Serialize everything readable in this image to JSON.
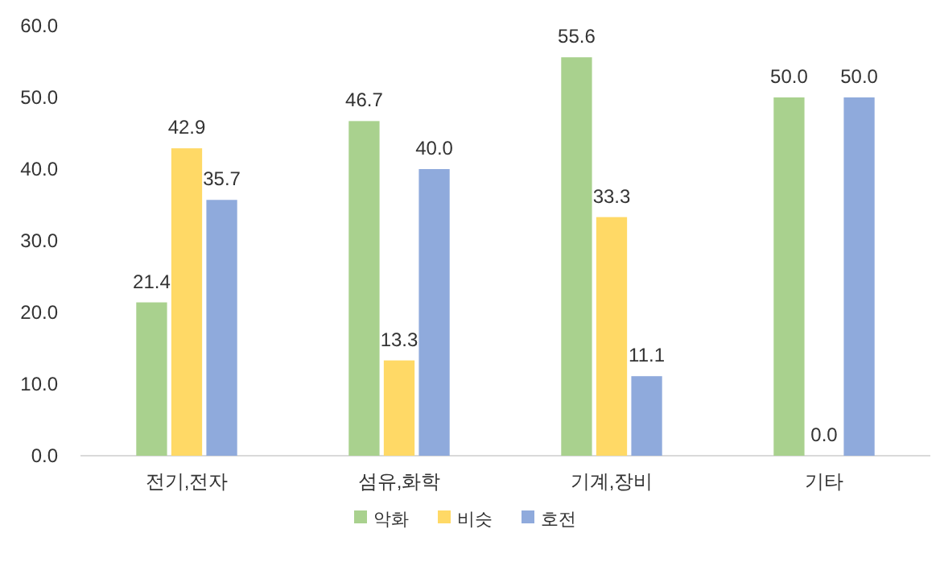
{
  "chart_data": {
    "type": "bar",
    "categories": [
      "전기,전자",
      "섬유,화학",
      "기계,장비",
      "기타"
    ],
    "series": [
      {
        "name": "악화",
        "color": "#a9d18e",
        "values": [
          21.4,
          46.7,
          55.6,
          50.0
        ],
        "value_labels": [
          "21.4",
          "46.7",
          "55.6",
          "50.0"
        ]
      },
      {
        "name": "비슷",
        "color": "#ffd966",
        "values": [
          42.9,
          13.3,
          33.3,
          0.0
        ],
        "value_labels": [
          "42.9",
          "13.3",
          "33.3",
          "0.0"
        ]
      },
      {
        "name": "호전",
        "color": "#8faadc",
        "values": [
          35.7,
          40.0,
          11.1,
          50.0
        ],
        "value_labels": [
          "35.7",
          "40.0",
          "11.1",
          "50.0"
        ]
      }
    ],
    "ylim": [
      0,
      60
    ],
    "yticks": [
      {
        "value": 0,
        "label": "0.0"
      },
      {
        "value": 10,
        "label": "10.0"
      },
      {
        "value": 20,
        "label": "20.0"
      },
      {
        "value": 30,
        "label": "30.0"
      },
      {
        "value": 40,
        "label": "40.0"
      },
      {
        "value": 50,
        "label": "50.0"
      },
      {
        "value": 60,
        "label": "60.0"
      }
    ],
    "grid": false,
    "legend": "bottom"
  }
}
